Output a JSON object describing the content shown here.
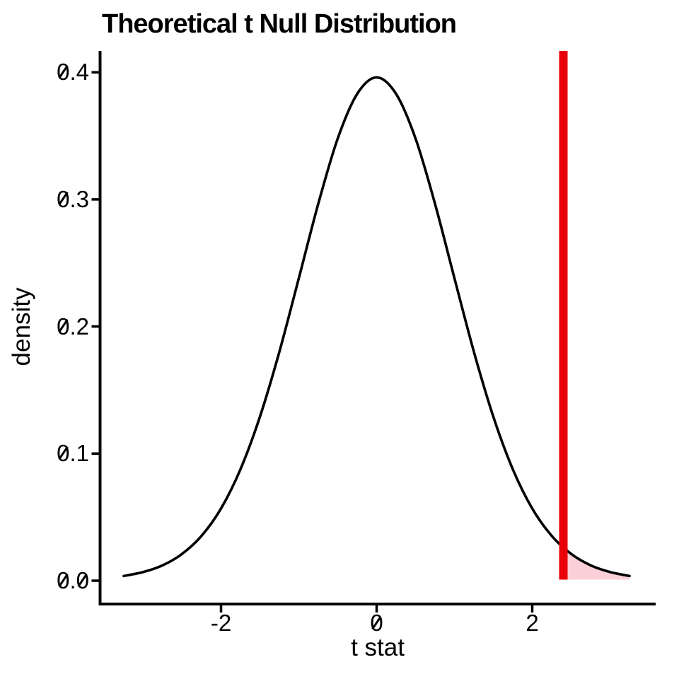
{
  "chart_data": {
    "type": "area",
    "title": "Theoretical t Null Distribution",
    "xlabel": "t stat",
    "ylabel": "density",
    "grid": false,
    "legend": false,
    "background": "#ffffff",
    "xlim": [
      -3.55,
      3.59
    ],
    "ylim": [
      0,
      0.417
    ],
    "x_ticks": [
      -2,
      0,
      2
    ],
    "x_tick_labels": [
      "-2",
      "0",
      "2"
    ],
    "y_ticks": [
      0.0,
      0.1,
      0.2,
      0.3,
      0.4
    ],
    "y_tick_labels": [
      "0.0",
      "0.1",
      "0.2",
      "0.3",
      "0.4"
    ],
    "series": [
      {
        "name": "t null density curve",
        "type": "line",
        "color": "#000000",
        "x": [
          -3.25,
          -3.0,
          -2.75,
          -2.5,
          -2.25,
          -2.0,
          -1.75,
          -1.5,
          -1.25,
          -1.0,
          -0.75,
          -0.5,
          -0.25,
          0.0,
          0.25,
          0.5,
          0.75,
          1.0,
          1.25,
          1.5,
          1.75,
          2.0,
          2.25,
          2.5,
          2.75,
          3.0,
          3.25
        ],
        "y": [
          0.0037,
          0.0068,
          0.0121,
          0.0211,
          0.0353,
          0.0568,
          0.0877,
          0.129,
          0.1801,
          0.238,
          0.2966,
          0.3479,
          0.383,
          0.396,
          0.383,
          0.3479,
          0.2966,
          0.238,
          0.1801,
          0.129,
          0.0877,
          0.0568,
          0.0353,
          0.0211,
          0.0121,
          0.0068,
          0.0037
        ]
      }
    ],
    "vline": {
      "x": 2.4,
      "color": "#e8000b"
    },
    "shaded_tail": {
      "from_x": 2.4,
      "to_x": 3.25,
      "fill": "#facfd8"
    },
    "axis_color": "#000000"
  }
}
